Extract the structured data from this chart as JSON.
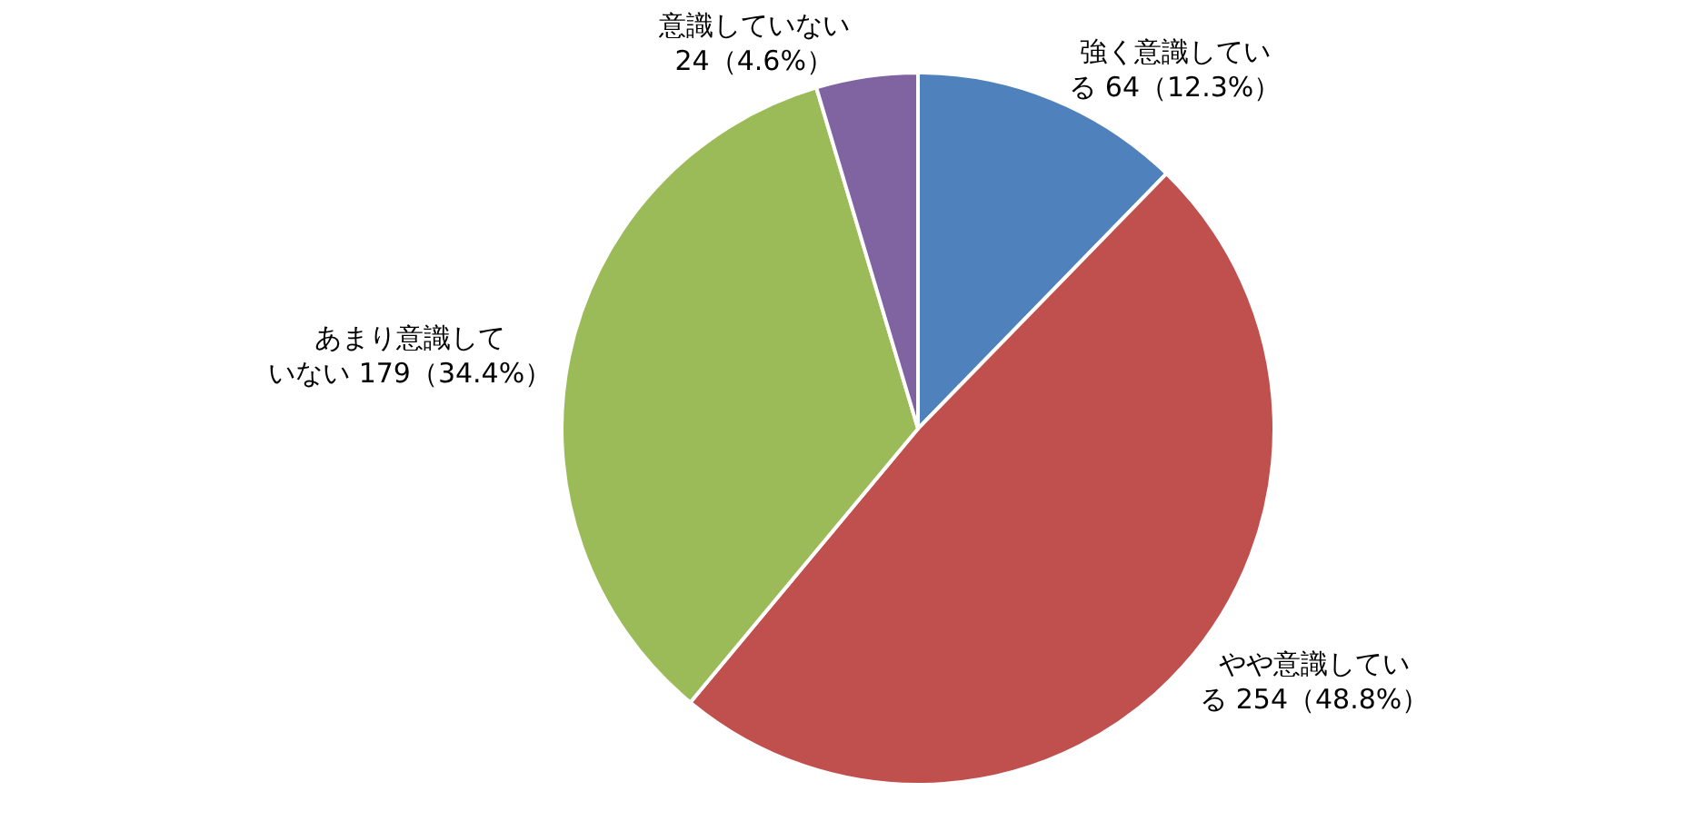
{
  "chart_data": {
    "type": "pie",
    "categories": [
      "強く意識している",
      "やや意識している",
      "あまり意識していない",
      "意識していない"
    ],
    "values": [
      64,
      254,
      179,
      24
    ],
    "value_labels": [
      "64（12.3%）",
      "254（48.8%）",
      "179（34.4%）",
      "24（4.6%）"
    ],
    "colors": [
      "#4f81bd",
      "#c0504d",
      "#9bbb59",
      "#8064a2"
    ],
    "legend": false
  }
}
